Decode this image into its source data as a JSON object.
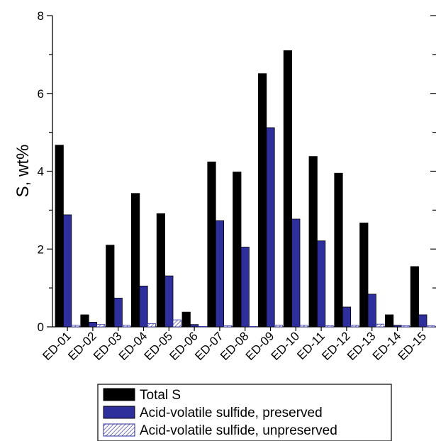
{
  "chart_data": {
    "type": "bar",
    "title": "",
    "xlabel": "",
    "ylabel": "S, wt%",
    "ylim": [
      0,
      8
    ],
    "yticks": [
      0,
      2,
      4,
      6,
      8
    ],
    "grid": false,
    "legend_position": "bottom",
    "categories": [
      "ED-01",
      "ED-02",
      "ED-03",
      "ED-04",
      "ED-05",
      "ED-06",
      "ED-07",
      "ED-08",
      "ED-09",
      "ED-10",
      "ED-11",
      "ED-12",
      "ED-13",
      "ED-14",
      "ED-15"
    ],
    "series": [
      {
        "name": "Total S",
        "color": "#000000",
        "pattern": "solid",
        "values": [
          4.67,
          0.31,
          2.1,
          3.43,
          2.91,
          0.38,
          4.24,
          3.98,
          6.51,
          7.1,
          4.38,
          3.95,
          2.67,
          0.31,
          1.55
        ]
      },
      {
        "name": "Acid-volatile sulfide, preserved",
        "color": "#2e2e9c",
        "pattern": "solid",
        "values": [
          2.88,
          0.12,
          0.74,
          1.05,
          1.31,
          0.06,
          2.73,
          2.05,
          5.12,
          2.77,
          2.21,
          0.51,
          0.84,
          0.04,
          0.31
        ]
      },
      {
        "name": "Acid-volatile sulfide, unpreserved",
        "color": "#ffffff",
        "pattern": "hatch",
        "values": [
          0.04,
          0.06,
          0.04,
          0.08,
          0.18,
          0.01,
          0.03,
          0.01,
          0.04,
          0.04,
          0.03,
          0.04,
          0.07,
          0.03,
          0.03
        ]
      }
    ]
  }
}
